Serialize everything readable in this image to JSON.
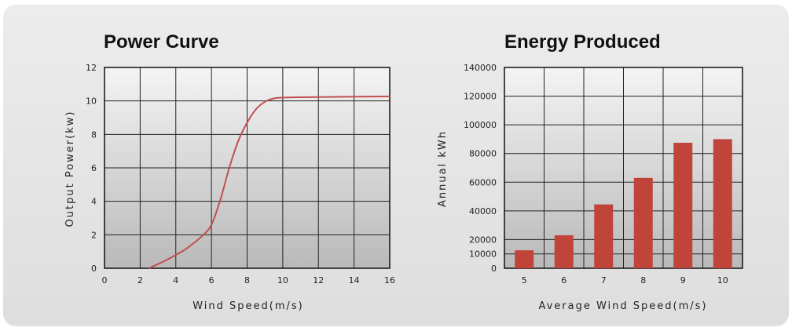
{
  "chart_data": [
    {
      "type": "line",
      "title": "Power Curve",
      "xlabel": "Wind Speed(m/s)",
      "ylabel": "Output Power(kw)",
      "xlim": [
        0,
        16
      ],
      "ylim": [
        0,
        12
      ],
      "xticks": [
        0,
        2,
        4,
        6,
        8,
        10,
        12,
        14,
        16
      ],
      "yticks": [
        0,
        2,
        4,
        6,
        8,
        10,
        12
      ],
      "grid": true,
      "series": [
        {
          "color": "#c0504d",
          "x": [
            2.5,
            3,
            3.5,
            4,
            4.5,
            5,
            5.5,
            6,
            6.5,
            7,
            7.5,
            8,
            8.5,
            9,
            9.5,
            10,
            11,
            12,
            13,
            14,
            15,
            16
          ],
          "y": [
            0,
            0.25,
            0.5,
            0.8,
            1.1,
            1.5,
            1.95,
            2.6,
            4.1,
            6.0,
            7.6,
            8.7,
            9.5,
            9.95,
            10.15,
            10.2,
            10.22,
            10.23,
            10.24,
            10.25,
            10.26,
            10.27
          ]
        }
      ]
    },
    {
      "type": "bar",
      "title": "Energy Produced",
      "xlabel": "Average Wind Speed(m/s)",
      "ylabel": "Annual kWh",
      "categories": [
        "5",
        "6",
        "7",
        "8",
        "9",
        "10"
      ],
      "values": [
        12500,
        23000,
        44500,
        63000,
        87500,
        90000
      ],
      "ylim": [
        0,
        140000
      ],
      "yticks": [
        0,
        10000,
        20000,
        40000,
        60000,
        80000,
        100000,
        120000,
        140000
      ],
      "grid": true,
      "bar_color": "#c0443a"
    }
  ]
}
